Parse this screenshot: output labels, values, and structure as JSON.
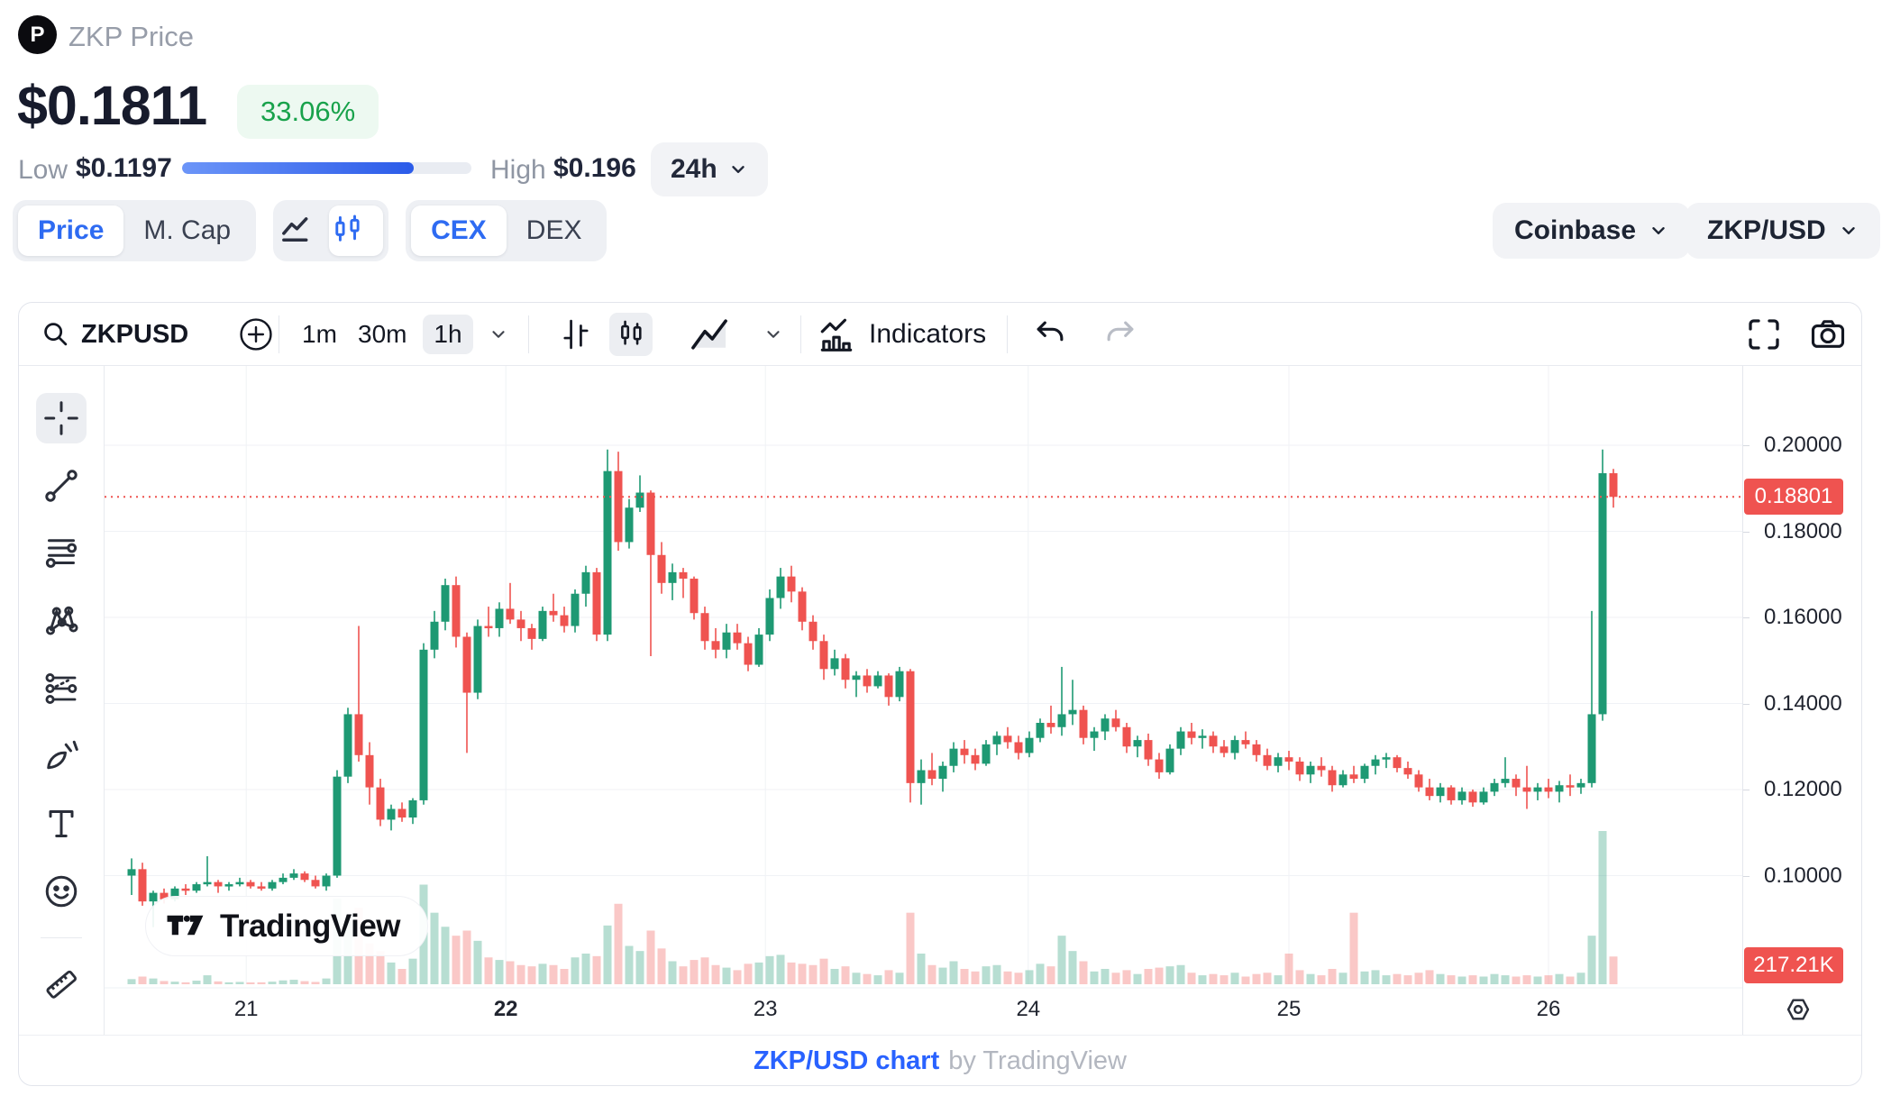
{
  "header": {
    "coin_label": "ZKP Price",
    "logo_letter": "P",
    "price": "$0.1811",
    "change_pct": "33.06%",
    "low_label": "Low",
    "low_value": "$0.1197",
    "high_label": "High",
    "high_value": "$0.196",
    "range_label": "24h",
    "range_fill_pct": 80
  },
  "controls": {
    "price_tab": "Price",
    "mcap_tab": "M. Cap",
    "cex_tab": "CEX",
    "dex_tab": "DEX",
    "exchange": "Coinbase",
    "pair": "ZKP/USD"
  },
  "toolbar": {
    "symbol": "ZKPUSD",
    "intervals": [
      "1m",
      "30m",
      "1h"
    ],
    "active_interval": "1h",
    "indicators_label": "Indicators"
  },
  "sidebar_tools": [
    "crosshair",
    "trend-line",
    "fib-retracement",
    "xabcd-pattern",
    "long-short-position",
    "brush",
    "text",
    "emoji",
    "ruler"
  ],
  "active_tool": "crosshair",
  "watermark": {
    "text": "TradingView"
  },
  "footer": {
    "link": "ZKP/USD chart",
    "suffix": "by TradingView"
  },
  "theme": {
    "accent_blue": "#2e6bf2",
    "link_blue": "#2962ff",
    "badge_green": "#18a24b",
    "progress_from": "#6c95f8",
    "progress_to": "#2b5be9"
  },
  "chart_data": {
    "type": "candlestick",
    "pair": "ZKP/USD",
    "interval": "1h",
    "grid": true,
    "colors": {
      "up": "#1e9973",
      "down": "#ef5350",
      "grid": "#f0f2f6",
      "last_line": "#ef5350"
    },
    "y_axis": {
      "ticks": [
        {
          "label": "0.20000",
          "value": 0.2
        },
        {
          "label": "0.18000",
          "value": 0.18
        },
        {
          "label": "0.16000",
          "value": 0.16
        },
        {
          "label": "0.14000",
          "value": 0.14
        },
        {
          "label": "0.12000",
          "value": 0.12
        },
        {
          "label": "0.10000",
          "value": 0.1
        }
      ]
    },
    "x_axis": {
      "ticks": [
        {
          "label": "21",
          "i": 10.6,
          "bold": false
        },
        {
          "label": "22",
          "i": 34.6,
          "bold": true
        },
        {
          "label": "23",
          "i": 58.6,
          "bold": false
        },
        {
          "label": "24",
          "i": 82.9,
          "bold": false
        },
        {
          "label": "25",
          "i": 107.0,
          "bold": false
        },
        {
          "label": "26",
          "i": 131.0,
          "bold": false
        }
      ]
    },
    "last_price": 0.18801,
    "last_price_label": "0.18801",
    "volume_label": "217.21K",
    "volume_max": 1200,
    "candles": [
      [
        0.1,
        0.104,
        0.0955,
        0.1015,
        40
      ],
      [
        0.1015,
        0.103,
        0.093,
        0.094,
        60
      ],
      [
        0.094,
        0.0965,
        0.088,
        0.096,
        45
      ],
      [
        0.096,
        0.097,
        0.0935,
        0.0945,
        25
      ],
      [
        0.0945,
        0.0975,
        0.094,
        0.097,
        20
      ],
      [
        0.097,
        0.098,
        0.0955,
        0.0965,
        15
      ],
      [
        0.0965,
        0.0985,
        0.096,
        0.098,
        28
      ],
      [
        0.098,
        0.1045,
        0.0975,
        0.0985,
        70
      ],
      [
        0.0985,
        0.099,
        0.096,
        0.0975,
        22
      ],
      [
        0.0975,
        0.0985,
        0.0965,
        0.098,
        15
      ],
      [
        0.098,
        0.0995,
        0.0975,
        0.0985,
        18
      ],
      [
        0.0985,
        0.099,
        0.097,
        0.0975,
        12
      ],
      [
        0.0975,
        0.0985,
        0.0965,
        0.097,
        15
      ],
      [
        0.097,
        0.099,
        0.0965,
        0.0985,
        20
      ],
      [
        0.0985,
        0.1005,
        0.098,
        0.0995,
        30
      ],
      [
        0.0995,
        0.1015,
        0.099,
        0.1005,
        35
      ],
      [
        0.1005,
        0.101,
        0.0985,
        0.099,
        24
      ],
      [
        0.099,
        0.1,
        0.097,
        0.0975,
        18
      ],
      [
        0.0975,
        0.1005,
        0.0965,
        0.1,
        45
      ],
      [
        0.1,
        0.1245,
        0.0995,
        0.123,
        670
      ],
      [
        0.123,
        0.139,
        0.1215,
        0.1375,
        490
      ],
      [
        0.1375,
        0.158,
        0.1265,
        0.128,
        600
      ],
      [
        0.128,
        0.131,
        0.1165,
        0.1205,
        320
      ],
      [
        0.1205,
        0.1225,
        0.1115,
        0.113,
        260
      ],
      [
        0.113,
        0.1165,
        0.1105,
        0.1155,
        170
      ],
      [
        0.1155,
        0.117,
        0.1125,
        0.1135,
        120
      ],
      [
        0.1135,
        0.118,
        0.112,
        0.1175,
        200
      ],
      [
        0.1175,
        0.154,
        0.1165,
        0.1525,
        780
      ],
      [
        0.1525,
        0.1615,
        0.1505,
        0.159,
        560
      ],
      [
        0.159,
        0.169,
        0.157,
        0.1675,
        450
      ],
      [
        0.1675,
        0.1695,
        0.153,
        0.1555,
        380
      ],
      [
        0.1555,
        0.1565,
        0.1285,
        0.1425,
        420
      ],
      [
        0.1425,
        0.1595,
        0.141,
        0.158,
        340
      ],
      [
        0.158,
        0.1625,
        0.1555,
        0.1575,
        210
      ],
      [
        0.1575,
        0.1635,
        0.1555,
        0.162,
        190
      ],
      [
        0.162,
        0.168,
        0.1585,
        0.1595,
        180
      ],
      [
        0.1595,
        0.1615,
        0.1545,
        0.1575,
        150
      ],
      [
        0.1575,
        0.1585,
        0.1525,
        0.155,
        140
      ],
      [
        0.155,
        0.1625,
        0.1545,
        0.1615,
        160
      ],
      [
        0.1615,
        0.1655,
        0.159,
        0.1605,
        150
      ],
      [
        0.1605,
        0.1625,
        0.1565,
        0.158,
        120
      ],
      [
        0.158,
        0.1665,
        0.1565,
        0.1655,
        210
      ],
      [
        0.1655,
        0.172,
        0.1625,
        0.1705,
        240
      ],
      [
        0.1705,
        0.1715,
        0.1545,
        0.156,
        220
      ],
      [
        0.156,
        0.199,
        0.1545,
        0.194,
        460
      ],
      [
        0.194,
        0.1985,
        0.1755,
        0.1775,
        630
      ],
      [
        0.1775,
        0.1875,
        0.176,
        0.1855,
        300
      ],
      [
        0.1855,
        0.193,
        0.1845,
        0.189,
        260
      ],
      [
        0.189,
        0.1895,
        0.151,
        0.1745,
        420
      ],
      [
        0.1745,
        0.1775,
        0.1655,
        0.168,
        280
      ],
      [
        0.168,
        0.1725,
        0.164,
        0.1705,
        180
      ],
      [
        0.1705,
        0.1715,
        0.1645,
        0.169,
        140
      ],
      [
        0.169,
        0.1695,
        0.1595,
        0.161,
        190
      ],
      [
        0.161,
        0.1625,
        0.1525,
        0.1545,
        210
      ],
      [
        0.1545,
        0.1575,
        0.1505,
        0.1525,
        150
      ],
      [
        0.1525,
        0.1585,
        0.1505,
        0.1565,
        130
      ],
      [
        0.1565,
        0.1585,
        0.1525,
        0.154,
        110
      ],
      [
        0.154,
        0.1555,
        0.1475,
        0.149,
        160
      ],
      [
        0.149,
        0.1575,
        0.1485,
        0.156,
        170
      ],
      [
        0.156,
        0.1665,
        0.1545,
        0.1645,
        220
      ],
      [
        0.1645,
        0.1715,
        0.162,
        0.1695,
        230
      ],
      [
        0.1695,
        0.172,
        0.1635,
        0.166,
        170
      ],
      [
        0.166,
        0.167,
        0.157,
        0.159,
        160
      ],
      [
        0.159,
        0.1605,
        0.1525,
        0.1545,
        150
      ],
      [
        0.1545,
        0.156,
        0.1455,
        0.148,
        200
      ],
      [
        0.148,
        0.1525,
        0.1465,
        0.1505,
        120
      ],
      [
        0.1505,
        0.1515,
        0.1435,
        0.1455,
        140
      ],
      [
        0.1455,
        0.1475,
        0.1415,
        0.1465,
        90
      ],
      [
        0.1465,
        0.148,
        0.1425,
        0.144,
        80
      ],
      [
        0.144,
        0.1475,
        0.1435,
        0.1465,
        70
      ],
      [
        0.1465,
        0.147,
        0.1395,
        0.1415,
        110
      ],
      [
        0.1415,
        0.1485,
        0.1405,
        0.1475,
        90
      ],
      [
        0.1475,
        0.148,
        0.117,
        0.1215,
        560
      ],
      [
        0.1215,
        0.127,
        0.1165,
        0.1245,
        240
      ],
      [
        0.1245,
        0.1285,
        0.121,
        0.1225,
        150
      ],
      [
        0.1225,
        0.1265,
        0.1195,
        0.1255,
        130
      ],
      [
        0.1255,
        0.131,
        0.124,
        0.1295,
        180
      ],
      [
        0.1295,
        0.1315,
        0.126,
        0.128,
        120
      ],
      [
        0.128,
        0.1295,
        0.1245,
        0.126,
        100
      ],
      [
        0.126,
        0.1315,
        0.1255,
        0.1305,
        140
      ],
      [
        0.1305,
        0.1335,
        0.128,
        0.1325,
        150
      ],
      [
        0.1325,
        0.1345,
        0.1295,
        0.131,
        100
      ],
      [
        0.131,
        0.1325,
        0.127,
        0.1285,
        90
      ],
      [
        0.1285,
        0.1335,
        0.1275,
        0.132,
        110
      ],
      [
        0.132,
        0.1365,
        0.131,
        0.1355,
        160
      ],
      [
        0.1355,
        0.1395,
        0.133,
        0.1345,
        140
      ],
      [
        0.1345,
        0.1485,
        0.1325,
        0.1375,
        380
      ],
      [
        0.1375,
        0.1455,
        0.135,
        0.1385,
        260
      ],
      [
        0.1385,
        0.1395,
        0.1305,
        0.132,
        180
      ],
      [
        0.132,
        0.1345,
        0.129,
        0.1335,
        100
      ],
      [
        0.1335,
        0.1375,
        0.1315,
        0.1365,
        120
      ],
      [
        0.1365,
        0.1385,
        0.1335,
        0.1345,
        90
      ],
      [
        0.1345,
        0.1355,
        0.1285,
        0.13,
        110
      ],
      [
        0.13,
        0.1325,
        0.1275,
        0.1315,
        80
      ],
      [
        0.1315,
        0.133,
        0.1255,
        0.127,
        120
      ],
      [
        0.127,
        0.1285,
        0.1225,
        0.124,
        130
      ],
      [
        0.124,
        0.1305,
        0.1235,
        0.1295,
        140
      ],
      [
        0.1295,
        0.1345,
        0.128,
        0.1335,
        150
      ],
      [
        0.1335,
        0.1355,
        0.1305,
        0.132,
        90
      ],
      [
        0.132,
        0.134,
        0.1295,
        0.1325,
        70
      ],
      [
        0.1325,
        0.1335,
        0.1285,
        0.13,
        80
      ],
      [
        0.13,
        0.1315,
        0.1275,
        0.1285,
        70
      ],
      [
        0.1285,
        0.1325,
        0.127,
        0.1315,
        90
      ],
      [
        0.1315,
        0.1335,
        0.1295,
        0.1305,
        60
      ],
      [
        0.1305,
        0.1315,
        0.1265,
        0.128,
        80
      ],
      [
        0.128,
        0.1295,
        0.1245,
        0.1255,
        90
      ],
      [
        0.1255,
        0.1285,
        0.124,
        0.1275,
        70
      ],
      [
        0.1275,
        0.129,
        0.1245,
        0.1265,
        240
      ],
      [
        0.1265,
        0.1275,
        0.122,
        0.1235,
        110
      ],
      [
        0.1235,
        0.1265,
        0.1215,
        0.1255,
        80
      ],
      [
        0.1255,
        0.1275,
        0.123,
        0.1245,
        70
      ],
      [
        0.1245,
        0.1255,
        0.1195,
        0.121,
        120
      ],
      [
        0.121,
        0.1245,
        0.1205,
        0.1235,
        90
      ],
      [
        0.1235,
        0.1255,
        0.1215,
        0.1225,
        560
      ],
      [
        0.1225,
        0.126,
        0.1215,
        0.1255,
        100
      ],
      [
        0.1255,
        0.128,
        0.1235,
        0.127,
        110
      ],
      [
        0.127,
        0.1285,
        0.125,
        0.1275,
        70
      ],
      [
        0.1275,
        0.128,
        0.124,
        0.125,
        80
      ],
      [
        0.125,
        0.1265,
        0.1225,
        0.1235,
        70
      ],
      [
        0.1235,
        0.1245,
        0.1195,
        0.1205,
        90
      ],
      [
        0.1205,
        0.1225,
        0.1175,
        0.1185,
        110
      ],
      [
        0.1185,
        0.1215,
        0.117,
        0.1205,
        80
      ],
      [
        0.1205,
        0.121,
        0.1165,
        0.1175,
        70
      ],
      [
        0.1175,
        0.1205,
        0.1165,
        0.1195,
        60
      ],
      [
        0.1195,
        0.12,
        0.116,
        0.117,
        70
      ],
      [
        0.117,
        0.1205,
        0.1165,
        0.1195,
        60
      ],
      [
        0.1195,
        0.1225,
        0.1185,
        0.1215,
        80
      ],
      [
        0.1215,
        0.1275,
        0.1205,
        0.1225,
        70
      ],
      [
        0.1225,
        0.1235,
        0.1185,
        0.1205,
        60
      ],
      [
        0.1205,
        0.1255,
        0.1155,
        0.1195,
        70
      ],
      [
        0.1195,
        0.1215,
        0.1175,
        0.1205,
        60
      ],
      [
        0.1205,
        0.1225,
        0.118,
        0.1195,
        70
      ],
      [
        0.1195,
        0.122,
        0.117,
        0.121,
        80
      ],
      [
        0.121,
        0.1235,
        0.1185,
        0.1205,
        60
      ],
      [
        0.1205,
        0.1225,
        0.119,
        0.1215,
        90
      ],
      [
        0.1215,
        0.1615,
        0.1205,
        0.1375,
        380
      ],
      [
        0.1375,
        0.199,
        0.136,
        0.1935,
        1200
      ],
      [
        0.1935,
        0.1945,
        0.1855,
        0.188,
        217
      ]
    ]
  }
}
